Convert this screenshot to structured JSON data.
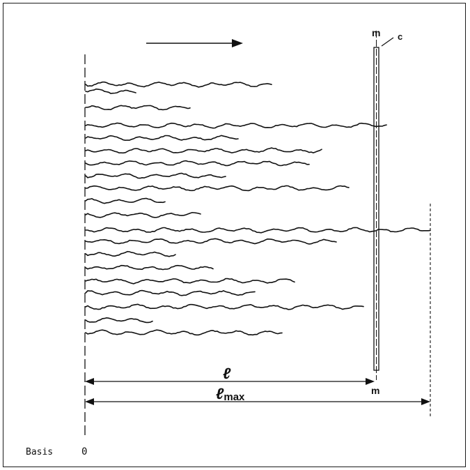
{
  "labels": {
    "m_top": "m",
    "c": "c",
    "m_bottom": "m",
    "l": "ℓ",
    "lmax_main": "ℓ",
    "lmax_sub": "max",
    "basis": "Basis",
    "origin": "0"
  },
  "colors": {
    "ink": "#111111",
    "background": "#ffffff"
  }
}
